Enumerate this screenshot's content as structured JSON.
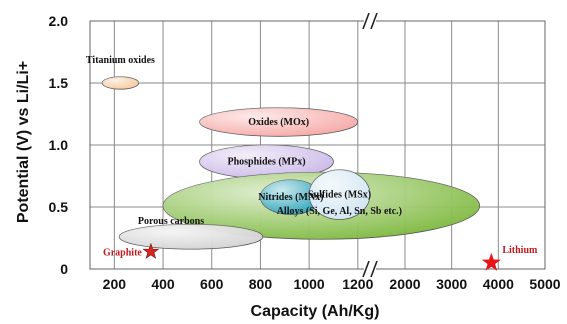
{
  "chart_data": {
    "type": "scatter",
    "title": "",
    "xlabel": "Capacity (Ah/Kg)",
    "ylabel": "Potential (V) vs Li/Li+",
    "ylim": [
      0,
      2.0
    ],
    "x_segments": [
      {
        "xlim": [
          100,
          1250
        ],
        "ticks": [
          200,
          400,
          600,
          800,
          1000,
          1200
        ]
      },
      {
        "xlim": [
          1250,
          5000
        ],
        "ticks": [
          2000,
          3000,
          4000,
          5000
        ]
      }
    ],
    "axis_break": "1200 // 2000",
    "y_ticks": [
      {
        "value": 0,
        "label": "0"
      },
      {
        "value": 0.5,
        "label": "0.5"
      },
      {
        "value": 1.0,
        "label": "1.0"
      },
      {
        "value": 1.5,
        "label": "1.5"
      },
      {
        "value": 2.0,
        "label": "2.0"
      }
    ],
    "grid": true,
    "regions": [
      {
        "name": "Titanium oxides",
        "x_range": [
          150,
          300
        ],
        "y_range": [
          1.45,
          1.55
        ],
        "color": "#f7c79a"
      },
      {
        "name": "Oxides (MOx)",
        "x_range": [
          550,
          1200
        ],
        "y_range": [
          1.07,
          1.3
        ],
        "color": "#f6a7a3"
      },
      {
        "name": "Phosphides (MPx)",
        "x_range": [
          550,
          1100
        ],
        "y_range": [
          0.73,
          1.0
        ],
        "color": "#c9b7e8"
      },
      {
        "name": "Alloys (Si, Ge, Al, Sn, Sb etc.)",
        "x_range": [
          400,
          3600
        ],
        "y_range": [
          0.24,
          0.78
        ],
        "color": "#7db83d"
      },
      {
        "name": "Nitrides (MNx)",
        "x_range": [
          800,
          1050
        ],
        "y_range": [
          0.44,
          0.72
        ],
        "color": "#2aa3bd"
      },
      {
        "name": "Sulfides (MSx)",
        "x_range": [
          1000,
          1250
        ],
        "y_range": [
          0.4,
          0.8
        ],
        "color": "#d4e7f7"
      },
      {
        "name": "Porous carbons",
        "x_range": [
          220,
          810
        ],
        "y_range": [
          0.16,
          0.36
        ],
        "color": "#d3d3d3"
      }
    ],
    "points": [
      {
        "name": "Graphite",
        "x": 350,
        "y": 0.14,
        "color": "#d7261e"
      },
      {
        "name": "Lithium",
        "x": 3850,
        "y": 0.05,
        "color": "#e8141a"
      }
    ]
  }
}
